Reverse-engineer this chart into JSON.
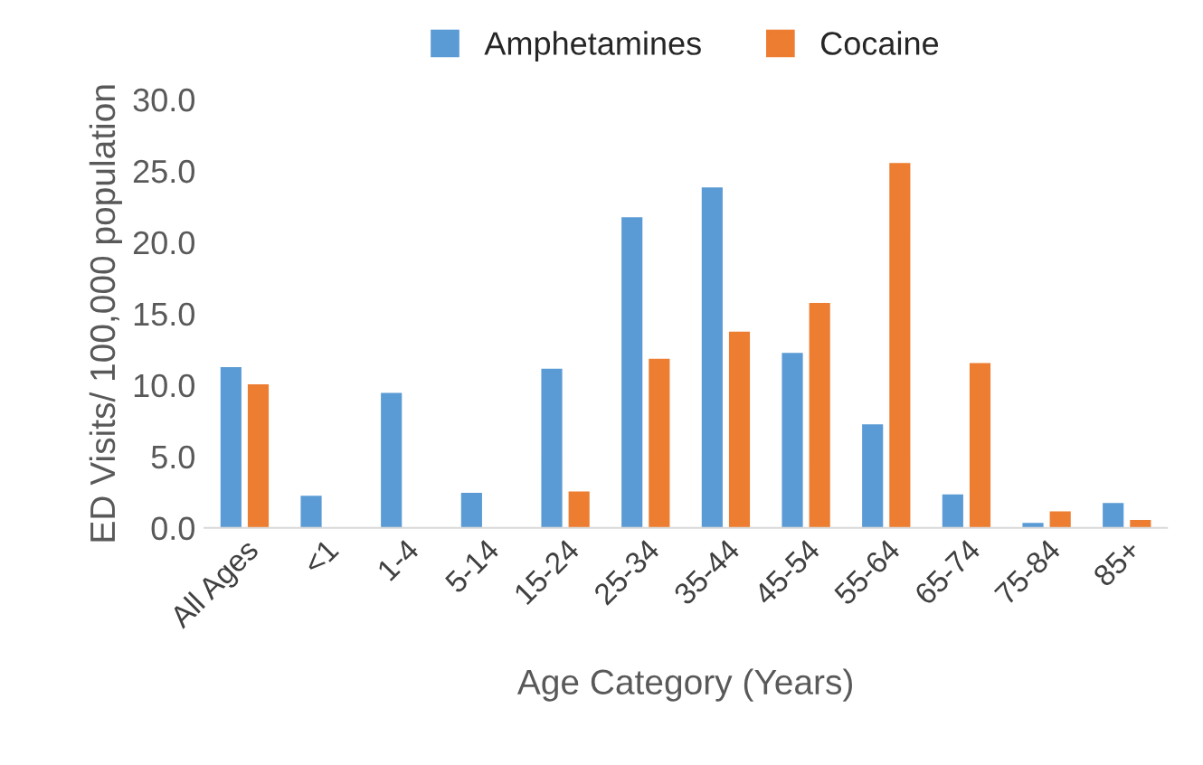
{
  "chart_data": {
    "type": "bar",
    "xlabel": "Age Category (Years)",
    "ylabel": "ED Visits/ 100,000 population",
    "categories": [
      "All Ages",
      "<1",
      "1-4",
      "5-14",
      "15-24",
      "25-34",
      "35-44",
      "45-54",
      "55-64",
      "65-74",
      "75-84",
      "85+"
    ],
    "series": [
      {
        "name": "Amphetamines",
        "color": "#5b9bd5",
        "values": [
          11.3,
          2.3,
          9.5,
          2.5,
          11.2,
          21.8,
          23.9,
          12.3,
          7.3,
          2.4,
          0.4,
          1.8
        ]
      },
      {
        "name": "Cocaine",
        "color": "#ed7d31",
        "values": [
          10.1,
          null,
          null,
          null,
          2.6,
          11.9,
          13.8,
          15.8,
          25.6,
          11.6,
          1.2,
          0.6
        ]
      }
    ],
    "ylim": [
      0,
      30
    ],
    "yticks": [
      {
        "value": 0,
        "label": "0.0"
      },
      {
        "value": 5,
        "label": "5.0"
      },
      {
        "value": 10,
        "label": "10.0"
      },
      {
        "value": 15,
        "label": "15.0"
      },
      {
        "value": 20,
        "label": "20.0"
      },
      {
        "value": 25,
        "label": "25.0"
      },
      {
        "value": 30,
        "label": "30.0"
      }
    ],
    "grid": false,
    "legend": "top"
  }
}
